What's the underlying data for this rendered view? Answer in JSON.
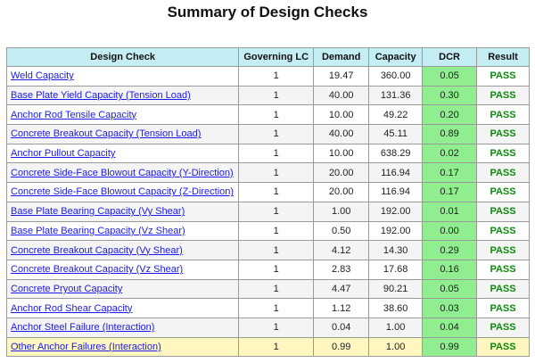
{
  "title": "Summary of Design Checks",
  "table": {
    "headers": [
      "Design Check",
      "Governing LC",
      "Demand",
      "Capacity",
      "DCR",
      "Result"
    ],
    "rows": [
      [
        "Weld Capacity",
        "1",
        "19.47",
        "360.00",
        "0.05",
        "PASS"
      ],
      [
        "Base Plate Yield Capacity (Tension Load)",
        "1",
        "40.00",
        "131.36",
        "0.30",
        "PASS"
      ],
      [
        "Anchor Rod Tensile Capacity",
        "1",
        "10.00",
        "49.22",
        "0.20",
        "PASS"
      ],
      [
        "Concrete Breakout Capacity (Tension Load)",
        "1",
        "40.00",
        "45.11",
        "0.89",
        "PASS"
      ],
      [
        "Anchor Pullout Capacity",
        "1",
        "10.00",
        "638.29",
        "0.02",
        "PASS"
      ],
      [
        "Concrete Side-Face Blowout Capacity (Y-Direction)",
        "1",
        "20.00",
        "116.94",
        "0.17",
        "PASS"
      ],
      [
        "Concrete Side-Face Blowout Capacity (Z-Direction)",
        "1",
        "20.00",
        "116.94",
        "0.17",
        "PASS"
      ],
      [
        "Base Plate Bearing Capacity (Vy Shear)",
        "1",
        "1.00",
        "192.00",
        "0.01",
        "PASS"
      ],
      [
        "Base Plate Bearing Capacity (Vz Shear)",
        "1",
        "0.50",
        "192.00",
        "0.00",
        "PASS"
      ],
      [
        "Concrete Breakout Capacity (Vy Shear)",
        "1",
        "4.12",
        "14.30",
        "0.29",
        "PASS"
      ],
      [
        "Concrete Breakout Capacity (Vz Shear)",
        "1",
        "2.83",
        "17.68",
        "0.16",
        "PASS"
      ],
      [
        "Concrete Pryout Capacity",
        "1",
        "4.47",
        "90.21",
        "0.05",
        "PASS"
      ],
      [
        "Anchor Rod Shear Capacity",
        "1",
        "1.12",
        "38.60",
        "0.03",
        "PASS"
      ],
      [
        "Anchor Steel Failure (Interaction)",
        "1",
        "0.04",
        "1.00",
        "0.04",
        "PASS"
      ],
      [
        "Other Anchor Failures (Interaction)",
        "1",
        "0.99",
        "1.00",
        "0.99",
        "PASS"
      ]
    ]
  }
}
